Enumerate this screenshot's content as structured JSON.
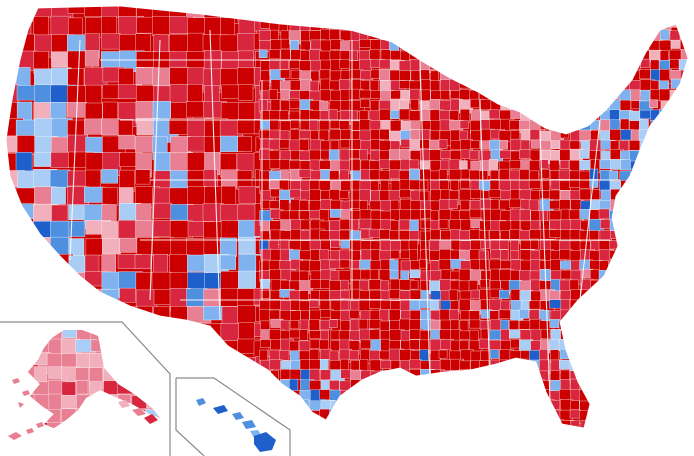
{
  "map": {
    "title": "",
    "palette": {
      "rep_strong": "#cc0000",
      "rep_medium": "#d7263d",
      "rep_lean": "#e87f92",
      "rep_slight": "#f2b0bd",
      "dem_slight": "#a9cdf5",
      "dem_lean": "#7fb2ee",
      "dem_medium": "#4f8fe0",
      "dem_strong": "#1f5fcc",
      "border": "#8a8a8a",
      "background": "#ffffff"
    },
    "regions": [
      {
        "name": "contiguous-us",
        "dominant": "rep_strong"
      },
      {
        "name": "alaska-inset",
        "dominant": "rep_lean"
      },
      {
        "name": "hawaii-inset",
        "dominant": "dem_medium"
      }
    ]
  }
}
